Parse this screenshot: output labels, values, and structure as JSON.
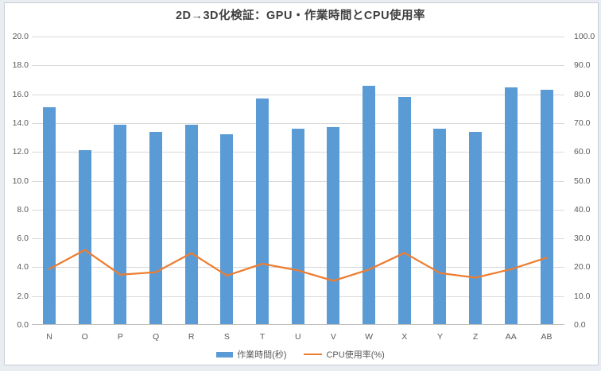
{
  "title": "2D→3D化検証：GPU・作業時間とCPU使用率",
  "chart_data": {
    "type": "combo-bar-line",
    "title": "2D→3D化検証：GPU・作業時間とCPU使用率",
    "categories": [
      "N",
      "O",
      "P",
      "Q",
      "R",
      "S",
      "T",
      "U",
      "V",
      "W",
      "X",
      "Y",
      "Z",
      "AA",
      "AB"
    ],
    "series": [
      {
        "name": "作業時間(秒)",
        "type": "bar",
        "axis": "left",
        "color": "#5b9bd5",
        "values": [
          15.1,
          12.1,
          13.9,
          13.4,
          13.9,
          13.2,
          15.7,
          13.6,
          13.7,
          16.6,
          15.8,
          13.6,
          13.4,
          16.5,
          16.3
        ]
      },
      {
        "name": "CPU使用率(%)",
        "type": "line",
        "axis": "right",
        "color": "#ed7d31",
        "values": [
          19.4,
          26.0,
          17.4,
          18.3,
          24.9,
          17.1,
          21.2,
          18.9,
          15.3,
          19.2,
          25.0,
          18.0,
          16.4,
          19.3,
          23.3
        ]
      }
    ],
    "left_axis": {
      "min": 0,
      "max": 20,
      "step": 2,
      "decimals": 1
    },
    "right_axis": {
      "min": 0,
      "max": 100,
      "step": 10,
      "decimals": 1
    },
    "grid": true,
    "legend_position": "bottom"
  },
  "colors": {
    "bar": "#5b9bd5",
    "line": "#ed7d31",
    "gridline": "#d9d9d9",
    "axis_line": "#bfbfbf",
    "axis_text": "#595959",
    "background": "#ffffff",
    "page_background": "#e9edf2"
  }
}
